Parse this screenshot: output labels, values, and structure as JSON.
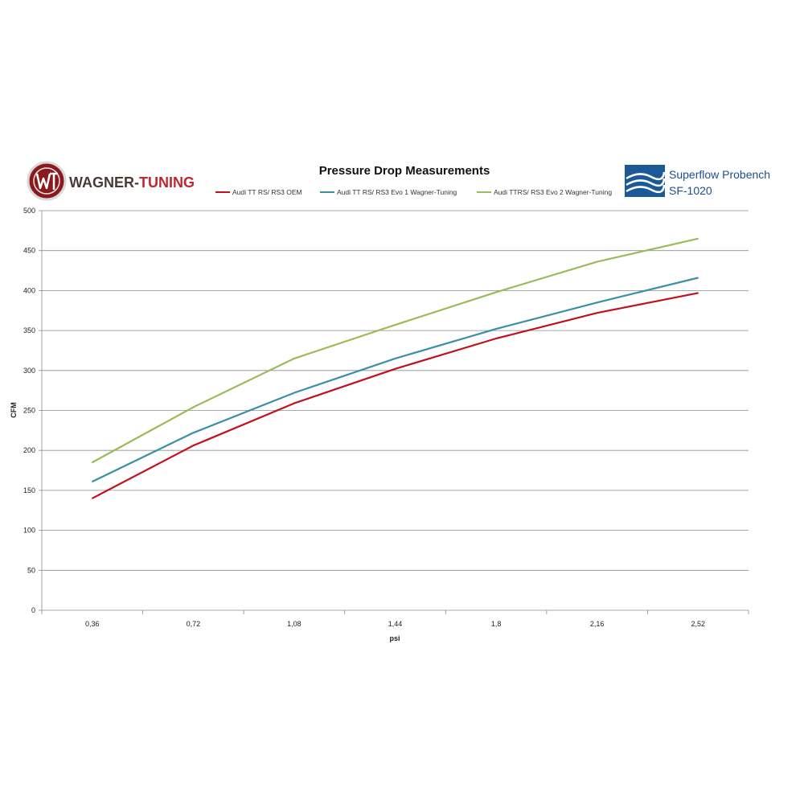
{
  "logos": {
    "left": {
      "text_part1": "WAGNER-",
      "text_part2": "TUNING",
      "color_dark": "#4a3a35",
      "color_red": "#c0272d"
    },
    "right": {
      "line1": "Superflow Probench",
      "line2": "SF-1020",
      "color": "#1b4f8a"
    }
  },
  "chart_data": {
    "type": "line",
    "title": "Pressure Drop Measurements",
    "xlabel": "psi",
    "ylabel": "CFM",
    "categories": [
      "0,36",
      "0,72",
      "1,08",
      "1,44",
      "1,8",
      "2,16",
      "2,52"
    ],
    "y_ticks": [
      "0",
      "50",
      "100",
      "150",
      "200",
      "250",
      "300",
      "350",
      "400",
      "450",
      "500"
    ],
    "ylim": [
      0,
      500
    ],
    "grid": true,
    "legend_position": "top",
    "series": [
      {
        "name": "Audi TT RS/ RS3  OEM",
        "color": "#c0121c",
        "values": [
          140,
          206,
          259,
          302,
          340,
          372,
          397
        ]
      },
      {
        "name": "Audi TT RS/ RS3 Evo 1 Wagner-Tuning",
        "color": "#3d8fa8",
        "values": [
          161,
          222,
          272,
          315,
          352,
          385,
          416
        ]
      },
      {
        "name": "Audi TTRS/ RS3 Evo 2 Wagner-Tuning",
        "color": "#9bbb59",
        "values": [
          185,
          254,
          315,
          357,
          398,
          436,
          465
        ]
      }
    ]
  }
}
